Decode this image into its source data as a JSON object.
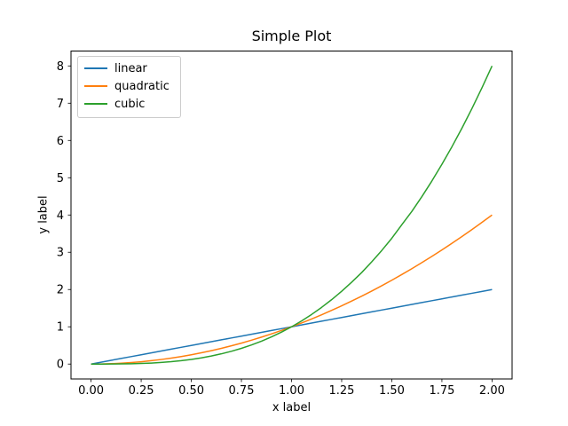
{
  "figure": {
    "background": "#ffffff",
    "text_color": "#000000",
    "spine_color": "#000000",
    "legend_border_color": "#cccccc"
  },
  "chart_data": {
    "type": "line",
    "title": "Simple Plot",
    "xlabel": "x label",
    "ylabel": "y label",
    "xlim": [
      -0.1,
      2.1
    ],
    "ylim": [
      -0.4,
      8.4
    ],
    "xticks": [
      0,
      0.25,
      0.5,
      0.75,
      1,
      1.25,
      1.5,
      1.75,
      2
    ],
    "xtick_labels": [
      "0.00",
      "0.25",
      "0.50",
      "0.75",
      "1.00",
      "1.25",
      "1.50",
      "1.75",
      "2.00"
    ],
    "yticks": [
      0,
      1,
      2,
      3,
      4,
      5,
      6,
      7,
      8
    ],
    "ytick_labels": [
      "0",
      "1",
      "2",
      "3",
      "4",
      "5",
      "6",
      "7",
      "8"
    ],
    "grid": false,
    "legend_position": "upper left",
    "x": [
      0,
      0.05,
      0.1,
      0.15,
      0.2,
      0.25,
      0.3,
      0.35,
      0.4,
      0.45,
      0.5,
      0.55,
      0.6,
      0.65,
      0.7,
      0.75,
      0.8,
      0.85,
      0.9,
      0.95,
      1,
      1.05,
      1.1,
      1.15,
      1.2,
      1.25,
      1.3,
      1.35,
      1.4,
      1.45,
      1.5,
      1.55,
      1.6,
      1.65,
      1.7,
      1.75,
      1.8,
      1.85,
      1.9,
      1.95,
      2
    ],
    "series": [
      {
        "name": "linear",
        "color": "#1f77b4",
        "values": [
          0,
          0.05,
          0.1,
          0.15,
          0.2,
          0.25,
          0.3,
          0.35,
          0.4,
          0.45,
          0.5,
          0.55,
          0.6,
          0.65,
          0.7,
          0.75,
          0.8,
          0.85,
          0.9,
          0.95,
          1,
          1.05,
          1.1,
          1.15,
          1.2,
          1.25,
          1.3,
          1.35,
          1.4,
          1.45,
          1.5,
          1.55,
          1.6,
          1.65,
          1.7,
          1.75,
          1.8,
          1.85,
          1.9,
          1.95,
          2
        ]
      },
      {
        "name": "quadratic",
        "color": "#ff7f0e",
        "values": [
          0,
          0.0025,
          0.01,
          0.0225,
          0.04,
          0.0625,
          0.09,
          0.1225,
          0.16,
          0.2025,
          0.25,
          0.3025,
          0.36,
          0.4225,
          0.49,
          0.5625,
          0.64,
          0.7225,
          0.81,
          0.9025,
          1,
          1.1025,
          1.21,
          1.3225,
          1.44,
          1.5625,
          1.69,
          1.8225,
          1.96,
          2.1025,
          2.25,
          2.4025,
          2.56,
          2.7225,
          2.89,
          3.0625,
          3.24,
          3.4225,
          3.61,
          3.8025,
          4
        ]
      },
      {
        "name": "cubic",
        "color": "#2ca02c",
        "values": [
          0,
          0.0001,
          0.001,
          0.0034,
          0.008,
          0.0156,
          0.027,
          0.0429,
          0.064,
          0.0911,
          0.125,
          0.1664,
          0.216,
          0.2746,
          0.343,
          0.4219,
          0.512,
          0.6141,
          0.729,
          0.8574,
          1,
          1.1576,
          1.331,
          1.5209,
          1.728,
          1.9531,
          2.197,
          2.4564,
          2.744,
          3.0486,
          3.375,
          3.7389,
          4.096,
          4.4921,
          4.913,
          5.3594,
          5.832,
          6.3316,
          6.859,
          7.4149,
          8
        ]
      }
    ]
  }
}
